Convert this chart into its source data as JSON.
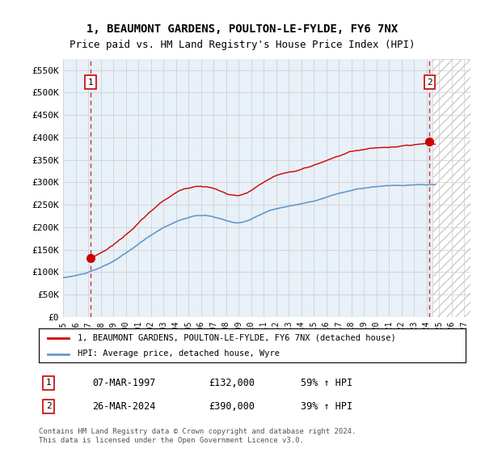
{
  "title1": "1, BEAUMONT GARDENS, POULTON-LE-FYLDE, FY6 7NX",
  "title2": "Price paid vs. HM Land Registry's House Price Index (HPI)",
  "ylabel_ticks": [
    "£0",
    "£50K",
    "£100K",
    "£150K",
    "£200K",
    "£250K",
    "£300K",
    "£350K",
    "£400K",
    "£450K",
    "£500K",
    "£550K"
  ],
  "ytick_values": [
    0,
    50000,
    100000,
    150000,
    200000,
    250000,
    300000,
    350000,
    400000,
    450000,
    500000,
    550000
  ],
  "ylim": [
    0,
    575000
  ],
  "xlim_start": 1995.0,
  "xlim_end": 2027.5,
  "sale1_date": 1997.18,
  "sale1_price": 132000,
  "sale2_date": 2024.23,
  "sale2_price": 390000,
  "legend_label1": "1, BEAUMONT GARDENS, POULTON-LE-FYLDE, FY6 7NX (detached house)",
  "legend_label2": "HPI: Average price, detached house, Wyre",
  "table_row1": [
    "1",
    "07-MAR-1997",
    "£132,000",
    "59% ↑ HPI"
  ],
  "table_row2": [
    "2",
    "26-MAR-2024",
    "£390,000",
    "39% ↑ HPI"
  ],
  "footnote": "Contains HM Land Registry data © Crown copyright and database right 2024.\nThis data is licensed under the Open Government Licence v3.0.",
  "hpi_line_color": "#6699CC",
  "price_line_color": "#CC0000",
  "bg_color": "#E8F0F8",
  "grid_color": "#CCCCCC",
  "future_hatch_color": "#CCCCCC"
}
